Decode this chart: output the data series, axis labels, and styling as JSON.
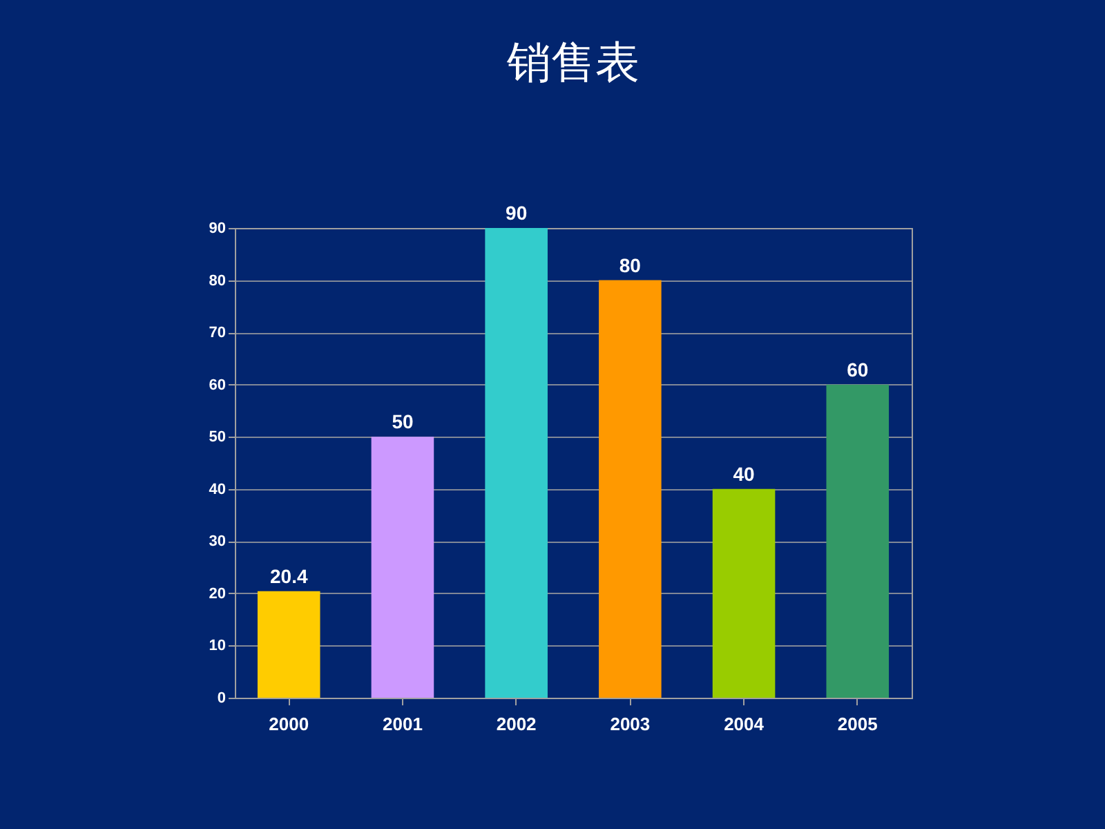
{
  "chart_data": {
    "type": "bar",
    "title": "销售表",
    "categories": [
      "2000",
      "2001",
      "2002",
      "2003",
      "2004",
      "2005"
    ],
    "values": [
      20.4,
      50,
      90,
      80,
      40,
      60
    ],
    "colors": [
      "#ffcc00",
      "#cc99ff",
      "#33cccc",
      "#ff9900",
      "#99cc00",
      "#339966"
    ],
    "ylim": [
      0,
      90
    ],
    "yticks": [
      0,
      10,
      20,
      30,
      40,
      50,
      60,
      70,
      80,
      90
    ],
    "grid": "y",
    "data_labels": true
  }
}
